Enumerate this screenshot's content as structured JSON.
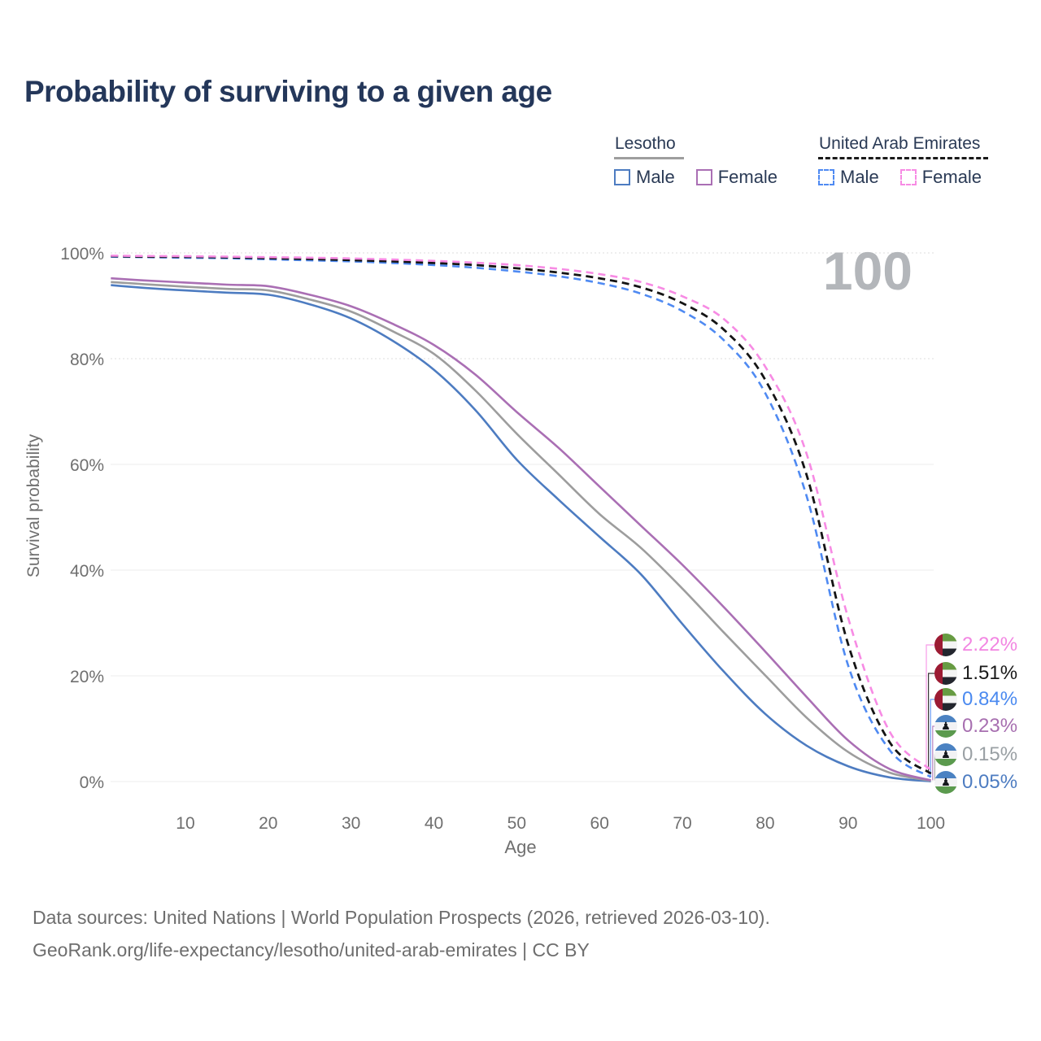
{
  "title": "Probability of surviving to a given age",
  "legend": {
    "groups": [
      {
        "name": "Lesotho",
        "line_style": "solid",
        "underline_color": "#9e9e9e",
        "items": [
          {
            "label": "Male",
            "color": "#4d7cc1"
          },
          {
            "label": "Female",
            "color": "#aa6fb4"
          }
        ]
      },
      {
        "name": "United Arab Emirates",
        "line_style": "dashed",
        "underline_color": "#1a1a1a",
        "items": [
          {
            "label": "Male",
            "color": "#4f8af2"
          },
          {
            "label": "Female",
            "color": "#f78be4"
          }
        ]
      }
    ]
  },
  "watermark": "100",
  "chart_data": {
    "type": "line",
    "title": "Probability of surviving to a given age",
    "xlabel": "Age",
    "ylabel": "Survival probability",
    "xlim": [
      0,
      100
    ],
    "ylim": [
      0,
      100
    ],
    "grid": true,
    "x_ticks": [
      10,
      20,
      30,
      40,
      50,
      60,
      70,
      80,
      90,
      100
    ],
    "y_ticks": [
      {
        "value": 0,
        "label": "0%"
      },
      {
        "value": 20,
        "label": "20%"
      },
      {
        "value": 40,
        "label": "40%"
      },
      {
        "value": 60,
        "label": "60%"
      },
      {
        "value": 80,
        "label": "80%"
      },
      {
        "value": 100,
        "label": "100%"
      }
    ],
    "ages": [
      1,
      5,
      10,
      15,
      20,
      25,
      30,
      35,
      40,
      45,
      50,
      55,
      60,
      65,
      70,
      75,
      80,
      85,
      90,
      95,
      100
    ],
    "series": [
      {
        "id": "lesotho-male",
        "name": "Lesotho Male",
        "country": "Lesotho",
        "sex": "Male",
        "color": "#4d7cc1",
        "dashed": false,
        "flag": "lesotho",
        "end_label": "0.05%",
        "label_color": "#4d7cc1",
        "values": [
          93.9,
          93.4,
          92.9,
          92.5,
          92.1,
          90.3,
          87.6,
          83.4,
          77.9,
          70.3,
          60.9,
          53.4,
          46.3,
          39.2,
          29.8,
          20.8,
          12.8,
          6.8,
          2.9,
          0.8,
          0.05
        ]
      },
      {
        "id": "lesotho-average",
        "name": "Lesotho Average",
        "country": "Lesotho",
        "sex": "Both",
        "color": "#9d9d9d",
        "dashed": false,
        "flag": "lesotho",
        "end_label": "0.15%",
        "label_color": "#9aa0a4",
        "values": [
          94.5,
          94.1,
          93.6,
          93.2,
          92.9,
          91.2,
          88.9,
          85.2,
          80.9,
          74.0,
          65.8,
          58.2,
          50.6,
          44.2,
          36.5,
          28.2,
          20.1,
          12.1,
          5.6,
          1.7,
          0.15
        ]
      },
      {
        "id": "lesotho-female",
        "name": "Lesotho Female",
        "country": "Lesotho",
        "sex": "Female",
        "color": "#aa6fb4",
        "dashed": false,
        "flag": "lesotho",
        "end_label": "0.23%",
        "label_color": "#a76fb0",
        "values": [
          95.2,
          94.8,
          94.4,
          94.0,
          93.7,
          92.1,
          89.9,
          86.6,
          82.6,
          77.0,
          69.9,
          63.2,
          55.8,
          48.4,
          41.0,
          33.0,
          24.6,
          16.0,
          7.8,
          2.4,
          0.23
        ]
      },
      {
        "id": "uae-male",
        "name": "United Arab Emirates Male",
        "country": "United Arab Emirates",
        "sex": "Male",
        "color": "#4f8af2",
        "dashed": true,
        "flag": "uae",
        "end_label": "0.84%",
        "label_color": "#4b8af0",
        "values": [
          99.28,
          99.2,
          99.1,
          99.0,
          98.8,
          98.6,
          98.4,
          98.1,
          97.7,
          97.2,
          96.5,
          95.6,
          94.3,
          92.3,
          89.0,
          83.5,
          73.5,
          54.0,
          22.0,
          6.0,
          0.84
        ]
      },
      {
        "id": "uae-average",
        "name": "United Arab Emirates Average",
        "country": "United Arab Emirates",
        "sex": "Both",
        "color": "#141414",
        "dashed": true,
        "flag": "uae",
        "end_label": "1.51%",
        "label_color": "#1a1a1a",
        "values": [
          99.38,
          99.3,
          99.25,
          99.15,
          99.0,
          98.85,
          98.65,
          98.4,
          98.1,
          97.7,
          97.1,
          96.3,
          95.2,
          93.5,
          90.5,
          85.5,
          76.0,
          58.0,
          26.0,
          7.5,
          1.51
        ]
      },
      {
        "id": "uae-female",
        "name": "United Arab Emirates Female",
        "country": "United Arab Emirates",
        "sex": "Female",
        "color": "#f78be4",
        "dashed": true,
        "flag": "uae",
        "end_label": "2.22%",
        "label_color": "#f286e2",
        "values": [
          99.48,
          99.42,
          99.38,
          99.3,
          99.2,
          99.1,
          98.95,
          98.75,
          98.5,
          98.15,
          97.7,
          97.0,
          96.0,
          94.5,
          91.8,
          87.5,
          78.5,
          62.0,
          31.0,
          9.5,
          2.22
        ]
      }
    ]
  },
  "footer": {
    "line1": "Data sources: United Nations | World Population Prospects (2026, retrieved 2026-03-10).",
    "line2": "GeoRank.org/life-expectancy/lesotho/united-arab-emirates | CC BY"
  }
}
